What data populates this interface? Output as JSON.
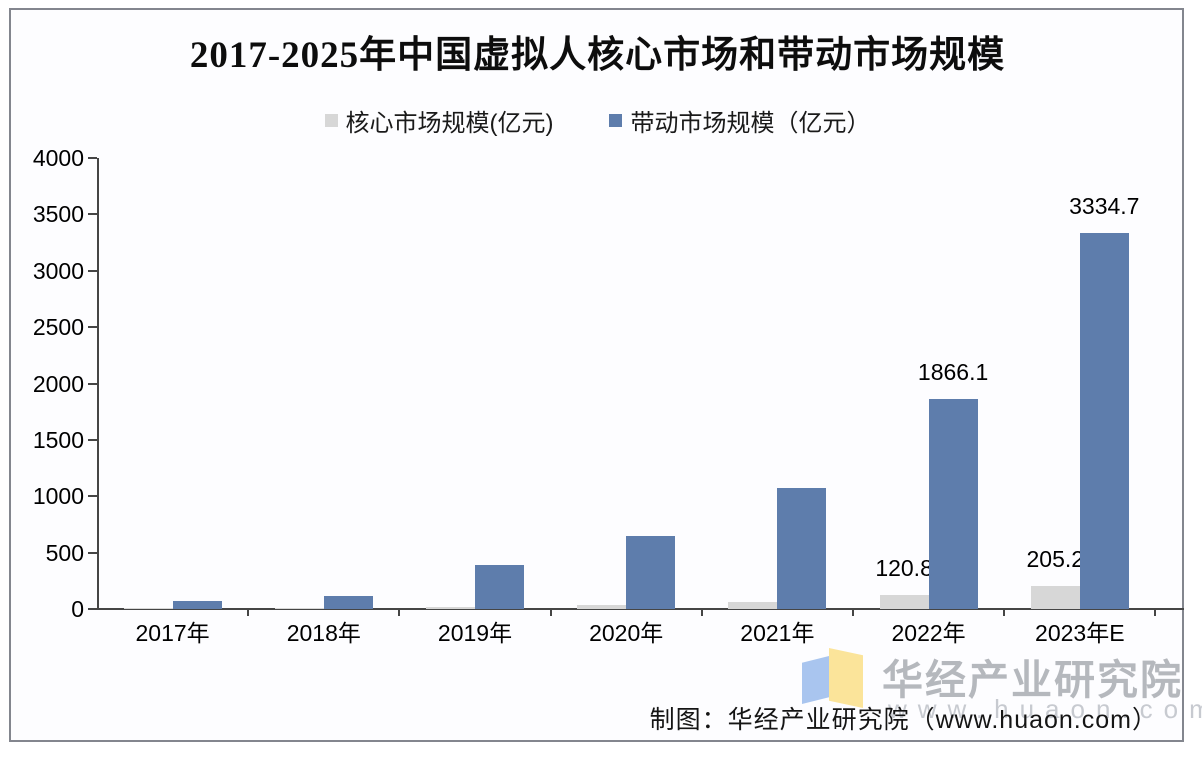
{
  "chart_data": {
    "type": "bar",
    "title": "2017-2025年中国虚拟人核心市场和带动市场规模",
    "categories": [
      "2017年",
      "2018年",
      "2019年",
      "2020年",
      "2021年",
      "2022年",
      "2023年E"
    ],
    "series": [
      {
        "name": "核心市场规模(亿元)",
        "color": "#d7d7d7",
        "values": [
          5,
          8,
          15,
          34.5,
          62.2,
          120.8,
          205.2
        ],
        "data_labels": [
          "",
          "",
          "",
          "",
          "",
          "120.8",
          "205.2"
        ]
      },
      {
        "name": "带动市场规模（亿元）",
        "color": "#5e7dac",
        "values": [
          75,
          115,
          390,
          645.6,
          1074.9,
          1866.1,
          3334.7
        ],
        "data_labels": [
          "",
          "",
          "",
          "",
          "",
          "1866.1",
          "3334.7"
        ]
      }
    ],
    "xlabel": "",
    "ylabel": "",
    "units": "亿元",
    "ylim": [
      0,
      4000
    ],
    "yticks": [
      0,
      500,
      1000,
      1500,
      2000,
      2500,
      3000,
      3500,
      4000
    ],
    "legend_position": "top",
    "gridlines": false
  },
  "footer": {
    "credit": "制图：华经产业研究院（www.huaon.com）"
  },
  "watermark": {
    "brand": "华经产业研究院",
    "site": "www.huaon.com"
  }
}
